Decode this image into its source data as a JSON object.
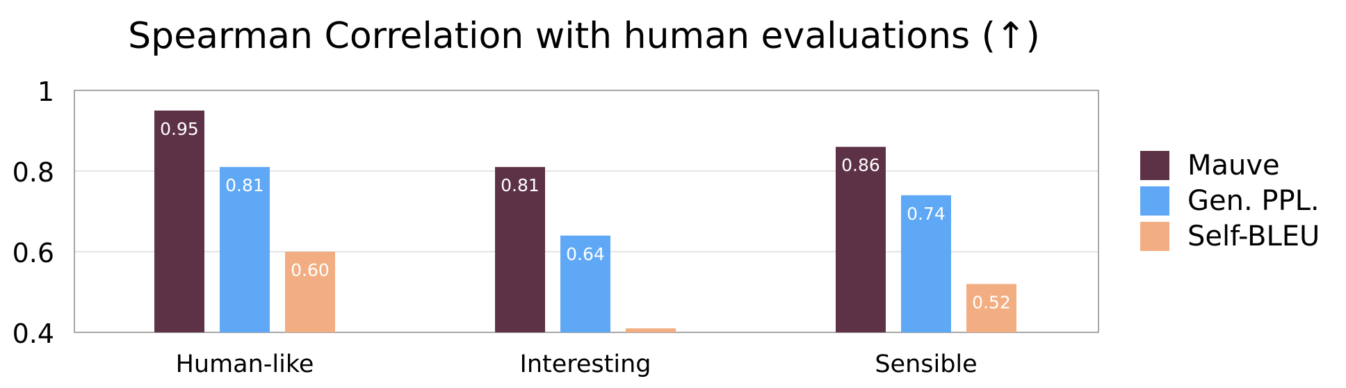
{
  "chart_data": {
    "type": "bar",
    "title": "Spearman Correlation with human evaluations (↑)",
    "xlabel": "",
    "ylabel": "",
    "categories": [
      "Human-like",
      "Interesting",
      "Sensible"
    ],
    "ylim": [
      0.4,
      1
    ],
    "yticks": [
      "0.4",
      "0.6",
      "0.8",
      "1"
    ],
    "grid": true,
    "legend_position": "right",
    "series": [
      {
        "name": "Mauve",
        "color": "#5e3246",
        "values": [
          0.95,
          0.81,
          0.86
        ],
        "labels": [
          "0.95",
          "0.81",
          "0.86"
        ]
      },
      {
        "name": "Gen. PPL.",
        "color": "#5ea8f5",
        "values": [
          0.81,
          0.64,
          0.74
        ],
        "labels": [
          "0.81",
          "0.64",
          "0.74"
        ]
      },
      {
        "name": "Self-BLEU",
        "color": "#f2ae82",
        "values": [
          0.6,
          0.41,
          0.52
        ],
        "labels": [
          "0.60",
          "",
          "0.52"
        ]
      }
    ]
  }
}
